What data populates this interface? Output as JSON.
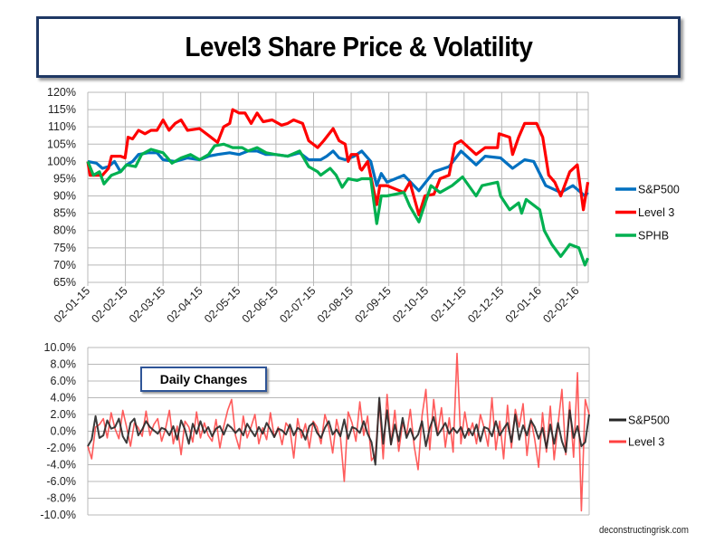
{
  "title": "Level3 Share Price & Volatility",
  "footer": "deconstructingrisk.com",
  "chart_data": [
    {
      "type": "line",
      "title": "Level3 Share Price & Volatility",
      "xlabel": "",
      "ylabel": "",
      "x_unit": "months since 02-01-15",
      "x_ticks": [
        "02-01-15",
        "02-02-15",
        "02-03-15",
        "02-04-15",
        "02-05-15",
        "02-06-15",
        "02-07-15",
        "02-08-15",
        "02-09-15",
        "02-10-15",
        "02-11-15",
        "02-12-15",
        "02-01-16",
        "02-02-16"
      ],
      "xlim": [
        0,
        13.3
      ],
      "y_ticks": [
        "120%",
        "115%",
        "110%",
        "105%",
        "100%",
        "95%",
        "90%",
        "85%",
        "80%",
        "75%",
        "70%",
        "65%"
      ],
      "ylim": [
        65,
        120
      ],
      "grid": true,
      "legend_placement": "right",
      "series": [
        {
          "name": "S&P500",
          "color": "#0070c0",
          "points": [
            [
              0,
              100
            ],
            [
              0.23,
              99.5
            ],
            [
              0.39,
              98
            ],
            [
              0.55,
              98.5
            ],
            [
              0.71,
              100
            ],
            [
              0.87,
              97
            ],
            [
              1.03,
              99
            ],
            [
              1.19,
              100
            ],
            [
              1.35,
              102
            ],
            [
              1.6,
              102.5
            ],
            [
              1.84,
              102.5
            ],
            [
              2.0,
              100.5
            ],
            [
              2.32,
              100
            ],
            [
              2.65,
              101
            ],
            [
              2.97,
              100.5
            ],
            [
              3.21,
              101.5
            ],
            [
              3.45,
              102
            ],
            [
              3.77,
              102.5
            ],
            [
              4.02,
              102
            ],
            [
              4.26,
              103
            ],
            [
              4.5,
              103
            ],
            [
              4.74,
              102
            ],
            [
              4.98,
              102
            ],
            [
              5.31,
              101.5
            ],
            [
              5.63,
              102.5
            ],
            [
              5.87,
              100.5
            ],
            [
              6.19,
              100.5
            ],
            [
              6.35,
              101.5
            ],
            [
              6.52,
              103
            ],
            [
              6.68,
              101
            ],
            [
              6.84,
              100.5
            ],
            [
              7.08,
              101.5
            ],
            [
              7.28,
              103
            ],
            [
              7.52,
              100
            ],
            [
              7.68,
              93
            ],
            [
              7.8,
              96.5
            ],
            [
              7.95,
              94
            ],
            [
              8.4,
              96
            ],
            [
              8.8,
              91.5
            ],
            [
              9.2,
              97
            ],
            [
              9.6,
              98.5
            ],
            [
              9.92,
              103
            ],
            [
              10.32,
              99
            ],
            [
              10.56,
              101.5
            ],
            [
              10.97,
              101
            ],
            [
              11.29,
              98
            ],
            [
              11.61,
              100.5
            ],
            [
              11.85,
              100
            ],
            [
              12.17,
              93
            ],
            [
              12.57,
              91
            ],
            [
              12.89,
              93
            ],
            [
              13.21,
              90
            ],
            [
              13.29,
              91
            ]
          ]
        },
        {
          "name": "Level 3",
          "color": "#ff0000",
          "points": [
            [
              0,
              100
            ],
            [
              0.06,
              96
            ],
            [
              0.39,
              96
            ],
            [
              0.55,
              98
            ],
            [
              0.63,
              101.5
            ],
            [
              0.87,
              101.5
            ],
            [
              0.99,
              101
            ],
            [
              1.07,
              107
            ],
            [
              1.19,
              106.5
            ],
            [
              1.35,
              109
            ],
            [
              1.52,
              108
            ],
            [
              1.68,
              109
            ],
            [
              1.84,
              109
            ],
            [
              2.0,
              112
            ],
            [
              2.16,
              109
            ],
            [
              2.24,
              110
            ],
            [
              2.32,
              111
            ],
            [
              2.48,
              112
            ],
            [
              2.65,
              109
            ],
            [
              2.97,
              109.5
            ],
            [
              3.21,
              107.5
            ],
            [
              3.45,
              105.5
            ],
            [
              3.61,
              110
            ],
            [
              3.77,
              111
            ],
            [
              3.85,
              115
            ],
            [
              4.02,
              114
            ],
            [
              4.18,
              114
            ],
            [
              4.34,
              111
            ],
            [
              4.5,
              114
            ],
            [
              4.66,
              111.5
            ],
            [
              4.9,
              112
            ],
            [
              5.15,
              110.5
            ],
            [
              5.31,
              111
            ],
            [
              5.47,
              112
            ],
            [
              5.71,
              111
            ],
            [
              5.87,
              106
            ],
            [
              6.11,
              104
            ],
            [
              6.27,
              106
            ],
            [
              6.52,
              109.5
            ],
            [
              6.68,
              106
            ],
            [
              6.84,
              105
            ],
            [
              6.92,
              100
            ],
            [
              7.0,
              102
            ],
            [
              7.16,
              102
            ],
            [
              7.24,
              98
            ],
            [
              7.28,
              97.5
            ],
            [
              7.44,
              100
            ],
            [
              7.68,
              87.5
            ],
            [
              7.76,
              93
            ],
            [
              7.95,
              93
            ],
            [
              8.4,
              91
            ],
            [
              8.56,
              94
            ],
            [
              8.8,
              84.5
            ],
            [
              8.96,
              90
            ],
            [
              9.2,
              90.5
            ],
            [
              9.36,
              95
            ],
            [
              9.6,
              96
            ],
            [
              9.76,
              105
            ],
            [
              9.92,
              106
            ],
            [
              10.32,
              102
            ],
            [
              10.56,
              104
            ],
            [
              10.89,
              104
            ],
            [
              10.93,
              108
            ],
            [
              11.21,
              107
            ],
            [
              11.29,
              102
            ],
            [
              11.45,
              107
            ],
            [
              11.61,
              111
            ],
            [
              11.93,
              111
            ],
            [
              12.09,
              107
            ],
            [
              12.25,
              96
            ],
            [
              12.41,
              94
            ],
            [
              12.57,
              90
            ],
            [
              12.81,
              97
            ],
            [
              13.01,
              99
            ],
            [
              13.17,
              86
            ],
            [
              13.29,
              94
            ]
          ]
        },
        {
          "name": "SPHB",
          "color": "#00b050",
          "points": [
            [
              0,
              100
            ],
            [
              0.15,
              96
            ],
            [
              0.31,
              97
            ],
            [
              0.43,
              93.5
            ],
            [
              0.63,
              96
            ],
            [
              0.87,
              97
            ],
            [
              1.03,
              99
            ],
            [
              1.27,
              98.5
            ],
            [
              1.43,
              102
            ],
            [
              1.68,
              103.5
            ],
            [
              1.84,
              103
            ],
            [
              2.0,
              102.5
            ],
            [
              2.24,
              99.5
            ],
            [
              2.48,
              101
            ],
            [
              2.73,
              102
            ],
            [
              2.97,
              100.5
            ],
            [
              3.21,
              102
            ],
            [
              3.37,
              104.5
            ],
            [
              3.61,
              105
            ],
            [
              3.85,
              104
            ],
            [
              4.1,
              104
            ],
            [
              4.26,
              103
            ],
            [
              4.5,
              104
            ],
            [
              4.74,
              102.5
            ],
            [
              4.98,
              102
            ],
            [
              5.31,
              101.5
            ],
            [
              5.63,
              103
            ],
            [
              5.87,
              98.5
            ],
            [
              6.11,
              97
            ],
            [
              6.19,
              96
            ],
            [
              6.44,
              98
            ],
            [
              6.6,
              96
            ],
            [
              6.76,
              92.5
            ],
            [
              6.92,
              95
            ],
            [
              7.16,
              94.5
            ],
            [
              7.28,
              95
            ],
            [
              7.52,
              95
            ],
            [
              7.68,
              82
            ],
            [
              7.8,
              90
            ],
            [
              7.95,
              90
            ],
            [
              8.4,
              91
            ],
            [
              8.56,
              87
            ],
            [
              8.8,
              82.5
            ],
            [
              9.12,
              93
            ],
            [
              9.36,
              91
            ],
            [
              9.68,
              93
            ],
            [
              9.96,
              95.5
            ],
            [
              10.32,
              90
            ],
            [
              10.48,
              93
            ],
            [
              10.89,
              94
            ],
            [
              10.97,
              90
            ],
            [
              11.21,
              86
            ],
            [
              11.45,
              88
            ],
            [
              11.53,
              85
            ],
            [
              11.65,
              89
            ],
            [
              12.01,
              86
            ],
            [
              12.13,
              80
            ],
            [
              12.33,
              76
            ],
            [
              12.57,
              72.5
            ],
            [
              12.81,
              76
            ],
            [
              13.05,
              75
            ],
            [
              13.21,
              70
            ],
            [
              13.29,
              72
            ]
          ]
        }
      ]
    },
    {
      "type": "line",
      "title": "Daily Changes",
      "xlabel": "",
      "ylabel": "",
      "y_ticks": [
        "10.0%",
        "8.0%",
        "6.0%",
        "4.0%",
        "2.0%",
        "0.0%",
        "-2.0%",
        "-4.0%",
        "-6.0%",
        "-8.0%",
        "-10.0%"
      ],
      "ylim": [
        -10,
        10
      ],
      "grid": true,
      "legend_placement": "right",
      "series": [
        {
          "name": "S&P500",
          "color": "#262626",
          "values": [
            -1.8,
            -1.0,
            1.8,
            -0.8,
            -0.5,
            1.3,
            0.3,
            0.5,
            1.5,
            -0.6,
            -1.4,
            1.0,
            1.5,
            -0.5,
            0.2,
            1.2,
            0.5,
            0.1,
            -0.3,
            0.4,
            0.2,
            -0.5,
            0.6,
            -1.0,
            1.3,
            0.2,
            -1.5,
            0.9,
            -0.3,
            1.2,
            -0.2,
            0.5,
            -0.6,
            0.3,
            0.6,
            -0.4,
            0.8,
            0.4,
            -0.2,
            0.3,
            -0.5,
            0.9,
            0.1,
            -0.6,
            0.5,
            -0.3,
            1.0,
            0.2,
            -0.7,
            0.3,
            0.1,
            -0.4,
            0.8,
            -0.5,
            0.4,
            0.1,
            -1.0,
            0.6,
            1.0,
            -0.2,
            -0.8,
            0.4,
            1.2,
            -0.4,
            0.2,
            -0.6,
            1.4,
            -0.9,
            0.5,
            0.3,
            -0.2,
            1.2,
            -0.3,
            -1.3,
            -4.0,
            4.0,
            -1.5,
            2.5,
            -1.6,
            0.8,
            -1.2,
            1.6,
            -0.8,
            0.3,
            -1.0,
            -0.4,
            1.2,
            -1.8,
            0.4,
            1.7,
            -0.5,
            0.2,
            1.0,
            -0.3,
            0.4,
            -0.2,
            0.5,
            -0.8,
            0.3,
            -0.5,
            0.8,
            -1.2,
            0.5,
            0.3,
            -0.6,
            1.2,
            -0.5,
            0.3,
            1.0,
            -1.3,
            2.0,
            -1.0,
            0.7,
            -0.5,
            1.3,
            0.5,
            -0.9,
            0.4,
            -2.0,
            0.8,
            -1.5,
            1.0,
            -1.2,
            -2.5,
            2.5,
            -0.8,
            0.6,
            -1.8,
            -1.3,
            2.0
          ]
        },
        {
          "name": "Level 3",
          "color": "#ff4040",
          "values": [
            -1.8,
            -3.3,
            0.5,
            0.8,
            1.5,
            -0.8,
            2.2,
            0.3,
            -0.9,
            2.5,
            0.5,
            -1.8,
            1.0,
            0.4,
            -0.6,
            2.4,
            -0.5,
            0.8,
            1.5,
            -1.2,
            0.3,
            2.5,
            -1.5,
            0.6,
            -2.8,
            1.2,
            0.5,
            -1.3,
            2.3,
            -0.8,
            1.0,
            -0.5,
            -1.2,
            1.4,
            -2.0,
            0.6,
            2.5,
            3.8,
            -0.5,
            -2.1,
            1.8,
            -0.8,
            0.5,
            2.0,
            -1.5,
            0.4,
            -1.0,
            2.2,
            -0.7,
            0.5,
            -1.6,
            1.0,
            0.3,
            -3.2,
            1.5,
            -0.8,
            0.9,
            -2.0,
            1.2,
            0.5,
            -1.5,
            2.0,
            0.4,
            -2.6,
            1.4,
            -0.6,
            -6.0,
            2.3,
            1.0,
            -1.2,
            3.5,
            -0.5,
            1.8,
            -3.5,
            -2.8,
            3.5,
            -3.3,
            4.4,
            -1.5,
            2.5,
            -2.4,
            1.0,
            -0.5,
            2.6,
            -1.8,
            -4.6,
            1.8,
            5.0,
            -2.2,
            3.8,
            -0.3,
            2.8,
            -1.9,
            1.6,
            -2.5,
            9.3,
            -1.5,
            2.3,
            -0.5,
            1.0,
            -1.5,
            2.0,
            0.4,
            -1.8,
            4.0,
            -2.2,
            1.2,
            -3.3,
            3.1,
            -2.0,
            2.6,
            0.5,
            3.3,
            -2.9,
            1.5,
            -1.0,
            -4.3,
            2.2,
            -2.5,
            3.0,
            -3.4,
            0.8,
            5.0,
            -2.8,
            3.5,
            -3.1,
            7.0,
            -9.5,
            3.8,
            2.0
          ]
        }
      ]
    }
  ]
}
